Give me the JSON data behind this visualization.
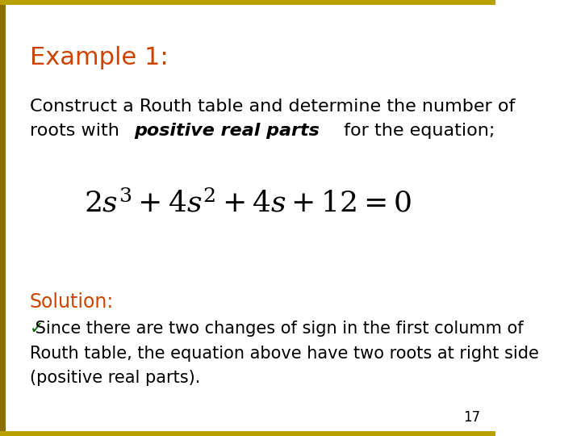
{
  "title": "Example 1:",
  "title_color": "#CC4400",
  "title_fontsize": 22,
  "body_text_1": "Construct a Routh table and determine the number of\nroots with ",
  "body_italic": "positive real parts",
  "body_text_2": " for the equation;",
  "body_fontsize": 16,
  "equation": "$2s^{3}+4s^{2}+4s+12=0$",
  "equation_fontsize": 26,
  "solution_label": "Solution:",
  "solution_color": "#CC4400",
  "solution_fontsize": 17,
  "bullet_text": " Since there are two changes of sign in the first columm of\nRouth table, the equation above have two roots at right side\n(positive real parts).",
  "bullet_fontsize": 15,
  "page_number": "17",
  "page_fontsize": 12,
  "background_color": "#FFFFFF",
  "border_color_top": "#B8A000",
  "border_color_left": "#B8A000",
  "left_bar_color": "#8B7000",
  "top_bar_height": 0.012,
  "bottom_bar_height": 0.012,
  "left_bar_width": 0.012
}
